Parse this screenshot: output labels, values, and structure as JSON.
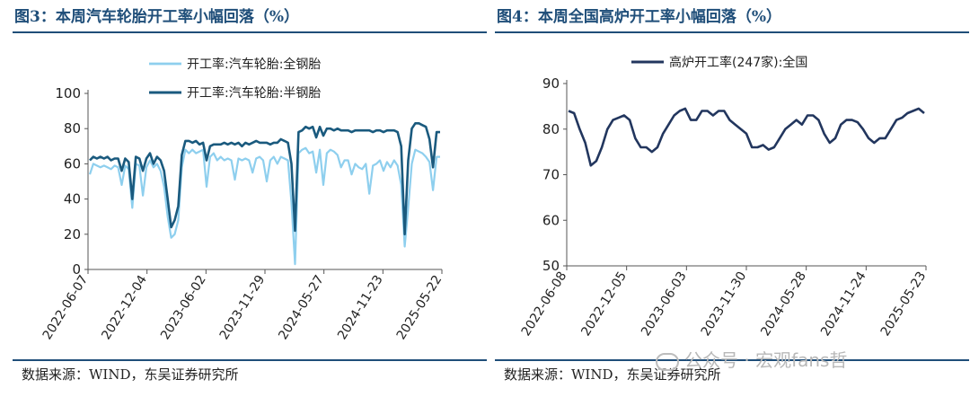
{
  "left": {
    "title": "图3：本周汽车轮胎开工率小幅回落（%）",
    "source": "数据来源：WIND，东吴证券研究所",
    "chart_data": {
      "type": "line",
      "ylim": [
        0,
        100
      ],
      "yticks": [
        "0",
        "20",
        "40",
        "60",
        "80",
        "100"
      ],
      "xticks": [
        "2022-06-07",
        "2022-12-04",
        "2023-06-02",
        "2023-11-29",
        "2024-05-27",
        "2024-11-23",
        "2025-05-22"
      ],
      "legend_position": "top",
      "series": [
        {
          "name": "开工率:汽车轮胎:全钢胎",
          "color": "#8ecfee",
          "points": [
            [
              0,
              54
            ],
            [
              1,
              60
            ],
            [
              2,
              59
            ],
            [
              3,
              58
            ],
            [
              4,
              59
            ],
            [
              5,
              58
            ],
            [
              6,
              57
            ],
            [
              7,
              59
            ],
            [
              8,
              58
            ],
            [
              9,
              48
            ],
            [
              10,
              59
            ],
            [
              11,
              57
            ],
            [
              12,
              35
            ],
            [
              13,
              60
            ],
            [
              14,
              59
            ],
            [
              15,
              42
            ],
            [
              16,
              58
            ],
            [
              17,
              62
            ],
            [
              18,
              58
            ],
            [
              19,
              60
            ],
            [
              20,
              56
            ],
            [
              21,
              47
            ],
            [
              22,
              30
            ],
            [
              23,
              18
            ],
            [
              24,
              20
            ],
            [
              25,
              28
            ],
            [
              26,
              58
            ],
            [
              27,
              68
            ],
            [
              28,
              66
            ],
            [
              29,
              68
            ],
            [
              30,
              66
            ],
            [
              31,
              67
            ],
            [
              32,
              68
            ],
            [
              33,
              47
            ],
            [
              34,
              64
            ],
            [
              35,
              66
            ],
            [
              36,
              62
            ],
            [
              37,
              64
            ],
            [
              38,
              62
            ],
            [
              39,
              63
            ],
            [
              40,
              62
            ],
            [
              41,
              51
            ],
            [
              42,
              63
            ],
            [
              43,
              62
            ],
            [
              44,
              63
            ],
            [
              45,
              62
            ],
            [
              46,
              55
            ],
            [
              47,
              63
            ],
            [
              48,
              64
            ],
            [
              49,
              62
            ],
            [
              50,
              50
            ],
            [
              51,
              62
            ],
            [
              52,
              64
            ],
            [
              53,
              60
            ],
            [
              54,
              64
            ],
            [
              55,
              63
            ],
            [
              56,
              62
            ],
            [
              57,
              38
            ],
            [
              58,
              3
            ],
            [
              59,
              66
            ],
            [
              60,
              68
            ],
            [
              61,
              69
            ],
            [
              62,
              66
            ],
            [
              63,
              67
            ],
            [
              64,
              55
            ],
            [
              65,
              68
            ],
            [
              66,
              48
            ],
            [
              67,
              66
            ],
            [
              68,
              68
            ],
            [
              69,
              67
            ],
            [
              70,
              65
            ],
            [
              71,
              58
            ],
            [
              72,
              62
            ],
            [
              73,
              62
            ],
            [
              74,
              54
            ],
            [
              75,
              60
            ],
            [
              76,
              58
            ],
            [
              77,
              57
            ],
            [
              78,
              60
            ],
            [
              79,
              43
            ],
            [
              80,
              59
            ],
            [
              81,
              60
            ],
            [
              82,
              62
            ],
            [
              83,
              56
            ],
            [
              84,
              61
            ],
            [
              85,
              58
            ],
            [
              86,
              62
            ],
            [
              87,
              59
            ],
            [
              88,
              48
            ],
            [
              89,
              13
            ],
            [
              90,
              35
            ],
            [
              91,
              60
            ],
            [
              92,
              68
            ],
            [
              93,
              67
            ],
            [
              94,
              66
            ],
            [
              95,
              64
            ],
            [
              96,
              61
            ],
            [
              97,
              45
            ],
            [
              98,
              64
            ],
            [
              99,
              64
            ]
          ]
        },
        {
          "name": "开工率:汽车轮胎:半钢胎",
          "color": "#1a5a7e",
          "points": [
            [
              0,
              62
            ],
            [
              1,
              64
            ],
            [
              2,
              63
            ],
            [
              3,
              64
            ],
            [
              4,
              63
            ],
            [
              5,
              64
            ],
            [
              6,
              62
            ],
            [
              7,
              63
            ],
            [
              8,
              63
            ],
            [
              9,
              56
            ],
            [
              10,
              63
            ],
            [
              11,
              61
            ],
            [
              12,
              40
            ],
            [
              13,
              64
            ],
            [
              14,
              63
            ],
            [
              15,
              56
            ],
            [
              16,
              63
            ],
            [
              17,
              66
            ],
            [
              18,
              60
            ],
            [
              19,
              64
            ],
            [
              20,
              62
            ],
            [
              21,
              56
            ],
            [
              22,
              40
            ],
            [
              23,
              24
            ],
            [
              24,
              28
            ],
            [
              25,
              36
            ],
            [
              26,
              65
            ],
            [
              27,
              73
            ],
            [
              28,
              73
            ],
            [
              29,
              72
            ],
            [
              30,
              73
            ],
            [
              31,
              71
            ],
            [
              32,
              72
            ],
            [
              33,
              62
            ],
            [
              34,
              70
            ],
            [
              35,
              71
            ],
            [
              36,
              71
            ],
            [
              37,
              71
            ],
            [
              38,
              72
            ],
            [
              39,
              71
            ],
            [
              40,
              72
            ],
            [
              41,
              71
            ],
            [
              42,
              72
            ],
            [
              43,
              70
            ],
            [
              44,
              72
            ],
            [
              45,
              71
            ],
            [
              46,
              72
            ],
            [
              47,
              73
            ],
            [
              48,
              72
            ],
            [
              49,
              72
            ],
            [
              50,
              72
            ],
            [
              51,
              71
            ],
            [
              52,
              72
            ],
            [
              53,
              72
            ],
            [
              54,
              74
            ],
            [
              55,
              73
            ],
            [
              56,
              72
            ],
            [
              57,
              60
            ],
            [
              58,
              22
            ],
            [
              59,
              78
            ],
            [
              60,
              79
            ],
            [
              61,
              81
            ],
            [
              62,
              80
            ],
            [
              63,
              81
            ],
            [
              64,
              75
            ],
            [
              65,
              81
            ],
            [
              66,
              76
            ],
            [
              67,
              80
            ],
            [
              68,
              80
            ],
            [
              69,
              79
            ],
            [
              70,
              80
            ],
            [
              71,
              79
            ],
            [
              72,
              79
            ],
            [
              73,
              79
            ],
            [
              74,
              78
            ],
            [
              75,
              79
            ],
            [
              76,
              79
            ],
            [
              77,
              79
            ],
            [
              78,
              79
            ],
            [
              79,
              79
            ],
            [
              80,
              78
            ],
            [
              81,
              79
            ],
            [
              82,
              79
            ],
            [
              83,
              78
            ],
            [
              84,
              79
            ],
            [
              85,
              79
            ],
            [
              86,
              79
            ],
            [
              87,
              78
            ],
            [
              88,
              70
            ],
            [
              89,
              20
            ],
            [
              90,
              62
            ],
            [
              91,
              80
            ],
            [
              92,
              83
            ],
            [
              93,
              83
            ],
            [
              94,
              82
            ],
            [
              95,
              81
            ],
            [
              96,
              74
            ],
            [
              97,
              58
            ],
            [
              98,
              78
            ],
            [
              99,
              78
            ]
          ]
        }
      ]
    }
  },
  "right": {
    "title": "图4：本周全国高炉开工率小幅回落（%）",
    "source": "数据来源：WIND，东吴证券研究所",
    "chart_data": {
      "type": "line",
      "ylim": [
        50,
        90
      ],
      "yticks": [
        "50",
        "60",
        "70",
        "80",
        "90"
      ],
      "xticks": [
        "2022-06-08",
        "2022-12-05",
        "2023-06-03",
        "2023-11-30",
        "2024-05-28",
        "2024-11-24",
        "2025-05-23"
      ],
      "legend_position": "top",
      "series": [
        {
          "name": "高炉开工率(247家):全国",
          "color": "#22365e",
          "points": [
            [
              0,
              84
            ],
            [
              1,
              83.5
            ],
            [
              2,
              80
            ],
            [
              3,
              77
            ],
            [
              4,
              72
            ],
            [
              5,
              73
            ],
            [
              6,
              76
            ],
            [
              7,
              80
            ],
            [
              8,
              82
            ],
            [
              9,
              82.5
            ],
            [
              10,
              83
            ],
            [
              11,
              82
            ],
            [
              12,
              78
            ],
            [
              13,
              76
            ],
            [
              14,
              76
            ],
            [
              15,
              75
            ],
            [
              16,
              76
            ],
            [
              17,
              79
            ],
            [
              18,
              81
            ],
            [
              19,
              83
            ],
            [
              20,
              84
            ],
            [
              21,
              84.5
            ],
            [
              22,
              82
            ],
            [
              23,
              82
            ],
            [
              24,
              84
            ],
            [
              25,
              84
            ],
            [
              26,
              83
            ],
            [
              27,
              84
            ],
            [
              28,
              84
            ],
            [
              29,
              82
            ],
            [
              30,
              81
            ],
            [
              31,
              80
            ],
            [
              32,
              79
            ],
            [
              33,
              76
            ],
            [
              34,
              76
            ],
            [
              35,
              76.5
            ],
            [
              36,
              75.5
            ],
            [
              37,
              76
            ],
            [
              38,
              78
            ],
            [
              39,
              80
            ],
            [
              40,
              81
            ],
            [
              41,
              82
            ],
            [
              42,
              81
            ],
            [
              43,
              83
            ],
            [
              44,
              83
            ],
            [
              45,
              82
            ],
            [
              46,
              79
            ],
            [
              47,
              77
            ],
            [
              48,
              78
            ],
            [
              49,
              81
            ],
            [
              50,
              82
            ],
            [
              51,
              82
            ],
            [
              52,
              81.5
            ],
            [
              53,
              80
            ],
            [
              54,
              78
            ],
            [
              55,
              77
            ],
            [
              56,
              78
            ],
            [
              57,
              78
            ],
            [
              58,
              80
            ],
            [
              59,
              82
            ],
            [
              60,
              82.5
            ],
            [
              61,
              83.5
            ],
            [
              62,
              84
            ],
            [
              63,
              84.5
            ],
            [
              64,
              83.5
            ]
          ]
        }
      ]
    }
  },
  "watermark": {
    "text": "公众号 · 宏观fans哲"
  }
}
